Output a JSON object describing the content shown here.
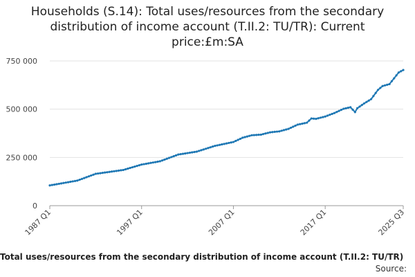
{
  "chart_data": {
    "type": "line",
    "title_lines": [
      "Households (S.14): Total uses/resources from the secondary",
      "distribution of income account (T.II.2: TU/TR): Current",
      "price:£m:SA"
    ],
    "series": [
      {
        "name": "Total uses/resources from the secondary distribution of income account (T.II.2: TU/TR)",
        "color": "#1f78b4",
        "anchors": [
          [
            "1987 Q1",
            105000
          ],
          [
            "1990 Q1",
            130000
          ],
          [
            "1992 Q1",
            165000
          ],
          [
            "1995 Q1",
            185000
          ],
          [
            "1997 Q1",
            213000
          ],
          [
            "1999 Q1",
            230000
          ],
          [
            "2001 Q1",
            265000
          ],
          [
            "2003 Q1",
            280000
          ],
          [
            "2005 Q1",
            310000
          ],
          [
            "2007 Q1",
            330000
          ],
          [
            "2008 Q1",
            352000
          ],
          [
            "2009 Q1",
            365000
          ],
          [
            "2010 Q1",
            368000
          ],
          [
            "2011 Q1",
            380000
          ],
          [
            "2012 Q1",
            385000
          ],
          [
            "2013 Q1",
            398000
          ],
          [
            "2014 Q1",
            420000
          ],
          [
            "2015 Q1",
            430000
          ],
          [
            "2015 Q3",
            452000
          ],
          [
            "2016 Q1",
            450000
          ],
          [
            "2017 Q1",
            462000
          ],
          [
            "2018 Q1",
            480000
          ],
          [
            "2019 Q1",
            502000
          ],
          [
            "2019 Q4",
            510000
          ],
          [
            "2020 Q2",
            485000
          ],
          [
            "2020 Q3",
            505000
          ],
          [
            "2021 Q2",
            530000
          ],
          [
            "2022 Q1",
            552000
          ],
          [
            "2022 Q4",
            600000
          ],
          [
            "2023 Q2",
            620000
          ],
          [
            "2024 Q1",
            630000
          ],
          [
            "2024 Q3",
            660000
          ],
          [
            "2025 Q1",
            690000
          ],
          [
            "2025 Q3",
            703000
          ]
        ]
      }
    ],
    "x_start": "1987 Q1",
    "x_end": "2025 Q3",
    "x_tick_labels": [
      "1987 Q1",
      "1997 Q1",
      "2007 Q1",
      "2017 Q1",
      "2025 Q3"
    ],
    "y_ticks": [
      0,
      250000,
      500000,
      750000
    ],
    "y_tick_labels": [
      "0",
      "250 000",
      "500 000",
      "750 000"
    ],
    "ylim": [
      0,
      750000
    ],
    "grid": true,
    "legend": "bottom"
  },
  "footer": {
    "source_label": "Source:"
  }
}
